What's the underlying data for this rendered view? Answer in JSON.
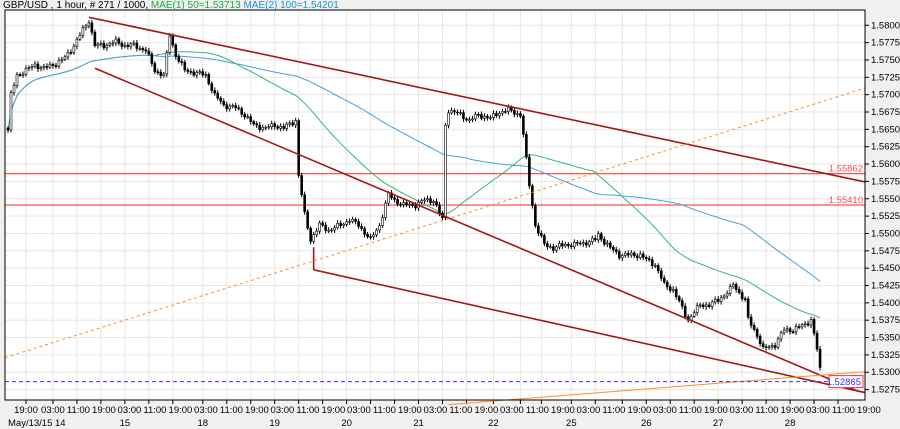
{
  "header": {
    "symbol": "GBP/USD",
    "info": " , 1 hour, # 271 / 1000, ",
    "ma1": "MAE(1) 50=1.53713",
    "ma2": "MAE(2) 100=1.54201"
  },
  "chart_data": {
    "type": "candlestick",
    "xlabel": "",
    "ylabel": "",
    "xlim_bars": [
      -1,
      286
    ],
    "ylim": [
      1.526,
      1.5822
    ],
    "grid": true,
    "colors": {
      "up": "#ffffff",
      "down": "#000000",
      "ma50": "#3cb371",
      "ma100": "#4a9fd8",
      "channel": "#a01818",
      "orange": "#ff8c2a",
      "hline": "#ff5050",
      "current": "#3030ff"
    },
    "y_ticks": [
      "1.58000",
      "1.57750",
      "1.57500",
      "1.57250",
      "1.57000",
      "1.56750",
      "1.56500",
      "1.56250",
      "1.56000",
      "1.55750",
      "1.55500",
      "1.55250",
      "1.55000",
      "1.54750",
      "1.54500",
      "1.54250",
      "1.54000",
      "1.53750",
      "1.53500",
      "1.53250",
      "1.53000",
      "1.52750"
    ],
    "x_ticks": [
      {
        "bar": 6,
        "label": "19:00",
        "date": "May/13/15 14"
      },
      {
        "bar": 15,
        "label": "03:00"
      },
      {
        "bar": 23,
        "label": "11:00"
      },
      {
        "bar": 31,
        "label": "19:00"
      },
      {
        "bar": 39,
        "label": "03:00",
        "date": "15"
      },
      {
        "bar": 47,
        "label": "11:00"
      },
      {
        "bar": 55,
        "label": "19:00"
      },
      {
        "bar": 65,
        "label": "03:00",
        "date": "18"
      },
      {
        "bar": 73,
        "label": "11:00"
      },
      {
        "bar": 81,
        "label": "19:00"
      },
      {
        "bar": 89,
        "label": "03:00",
        "date": "19"
      },
      {
        "bar": 97,
        "label": "11:00"
      },
      {
        "bar": 105,
        "label": "19:00"
      },
      {
        "bar": 113,
        "label": "03:00",
        "date": "20"
      },
      {
        "bar": 121,
        "label": "11:00"
      },
      {
        "bar": 129,
        "label": "19:00"
      },
      {
        "bar": 137,
        "label": "03:00",
        "date": "21"
      },
      {
        "bar": 145,
        "label": "11:00"
      },
      {
        "bar": 153,
        "label": "19:00"
      },
      {
        "bar": 162,
        "label": "03:00",
        "date": "22"
      },
      {
        "bar": 171,
        "label": "11:00"
      },
      {
        "bar": 178,
        "label": "19:00"
      },
      {
        "bar": 188,
        "label": "03:00",
        "date": "25"
      },
      {
        "bar": 196,
        "label": "11:00"
      },
      {
        "bar": 205,
        "label": "19:00"
      },
      {
        "bar": 213,
        "label": "03:00",
        "date": "26"
      },
      {
        "bar": 221,
        "label": "11:00"
      },
      {
        "bar": 229,
        "label": "19:00"
      },
      {
        "bar": 237,
        "label": "03:00",
        "date": "27"
      },
      {
        "bar": 245,
        "label": "11:00"
      },
      {
        "bar": 253,
        "label": "19:00"
      },
      {
        "bar": 261,
        "label": "03:00",
        "date": "28"
      },
      {
        "bar": 269,
        "label": "11:00"
      },
      {
        "bar": 277,
        "label": "19:00"
      }
    ],
    "close_path": [
      [
        0,
        1.5649
      ],
      [
        1,
        1.5699
      ],
      [
        3,
        1.5728
      ],
      [
        6,
        1.5735
      ],
      [
        9,
        1.5743
      ],
      [
        12,
        1.5738
      ],
      [
        16,
        1.5745
      ],
      [
        19,
        1.5753
      ],
      [
        22,
        1.5771
      ],
      [
        25,
        1.5793
      ],
      [
        27,
        1.5807
      ],
      [
        29,
        1.5771
      ],
      [
        32,
        1.5771
      ],
      [
        36,
        1.5776
      ],
      [
        39,
        1.5771
      ],
      [
        42,
        1.5771
      ],
      [
        46,
        1.5764
      ],
      [
        49,
        1.5735
      ],
      [
        52,
        1.5728
      ],
      [
        54,
        1.5786
      ],
      [
        56,
        1.5757
      ],
      [
        59,
        1.5735
      ],
      [
        62,
        1.5732
      ],
      [
        66,
        1.5728
      ],
      [
        69,
        1.5699
      ],
      [
        72,
        1.5685
      ],
      [
        76,
        1.5681
      ],
      [
        79,
        1.5671
      ],
      [
        82,
        1.5656
      ],
      [
        86,
        1.5652
      ],
      [
        89,
        1.5656
      ],
      [
        92,
        1.5652
      ],
      [
        96,
        1.5663
      ],
      [
        97,
        1.5584
      ],
      [
        99,
        1.5527
      ],
      [
        101,
        1.5491
      ],
      [
        104,
        1.5512
      ],
      [
        107,
        1.5505
      ],
      [
        111,
        1.5512
      ],
      [
        114,
        1.552
      ],
      [
        117,
        1.5512
      ],
      [
        121,
        1.5491
      ],
      [
        124,
        1.5512
      ],
      [
        127,
        1.5556
      ],
      [
        129,
        1.5548
      ],
      [
        132,
        1.5541
      ],
      [
        136,
        1.5541
      ],
      [
        139,
        1.5548
      ],
      [
        142,
        1.5548
      ],
      [
        145,
        1.552
      ],
      [
        146,
        1.5656
      ],
      [
        147,
        1.5678
      ],
      [
        151,
        1.5671
      ],
      [
        154,
        1.5663
      ],
      [
        157,
        1.5671
      ],
      [
        161,
        1.5666
      ],
      [
        164,
        1.5675
      ],
      [
        167,
        1.5678
      ],
      [
        171,
        1.5671
      ],
      [
        172,
        1.5642
      ],
      [
        174,
        1.557
      ],
      [
        176,
        1.5512
      ],
      [
        179,
        1.5484
      ],
      [
        182,
        1.5479
      ],
      [
        186,
        1.5484
      ],
      [
        189,
        1.5484
      ],
      [
        192,
        1.5486
      ],
      [
        196,
        1.5491
      ],
      [
        197,
        1.5498
      ],
      [
        201,
        1.5479
      ],
      [
        204,
        1.5469
      ],
      [
        207,
        1.5469
      ],
      [
        211,
        1.5469
      ],
      [
        213,
        1.5462
      ],
      [
        216,
        1.5455
      ],
      [
        219,
        1.5426
      ],
      [
        222,
        1.5419
      ],
      [
        226,
        1.5383
      ],
      [
        227,
        1.5376
      ],
      [
        231,
        1.5397
      ],
      [
        234,
        1.5397
      ],
      [
        237,
        1.5404
      ],
      [
        241,
        1.5419
      ],
      [
        242,
        1.5426
      ],
      [
        246,
        1.5404
      ],
      [
        247,
        1.5376
      ],
      [
        250,
        1.5354
      ],
      [
        252,
        1.5333
      ],
      [
        256,
        1.534
      ],
      [
        259,
        1.5361
      ],
      [
        262,
        1.5361
      ],
      [
        266,
        1.5369
      ],
      [
        268,
        1.5376
      ],
      [
        270,
        1.5333
      ],
      [
        271,
        1.5304
      ]
    ],
    "trend_lines": [
      {
        "kind": "channel",
        "from": [
          27,
          1.58115
        ],
        "to": [
          286,
          1.55742
        ]
      },
      {
        "kind": "channel",
        "from": [
          29,
          1.57381
        ],
        "to": [
          284,
          1.52721
        ]
      },
      {
        "kind": "channel",
        "from": [
          102,
          1.54476
        ],
        "to": [
          286,
          1.52707
        ]
      },
      {
        "kind": "channel",
        "from": [
          102,
          1.548
        ],
        "to": [
          102,
          1.54476
        ]
      },
      {
        "kind": "orange-dashed",
        "from": [
          -1,
          1.5321
        ],
        "to": [
          286,
          1.57094
        ]
      },
      {
        "kind": "orange",
        "from": [
          147,
          1.52534
        ],
        "to": [
          286,
          1.53009
        ]
      }
    ],
    "h_lines": [
      {
        "price": 1.55862,
        "label": "1.55862"
      },
      {
        "price": 1.5541,
        "label": "1.55410"
      }
    ],
    "current_price": {
      "price": 1.52865,
      "label": "1.52865"
    },
    "ma_periods": [
      50,
      100
    ]
  }
}
